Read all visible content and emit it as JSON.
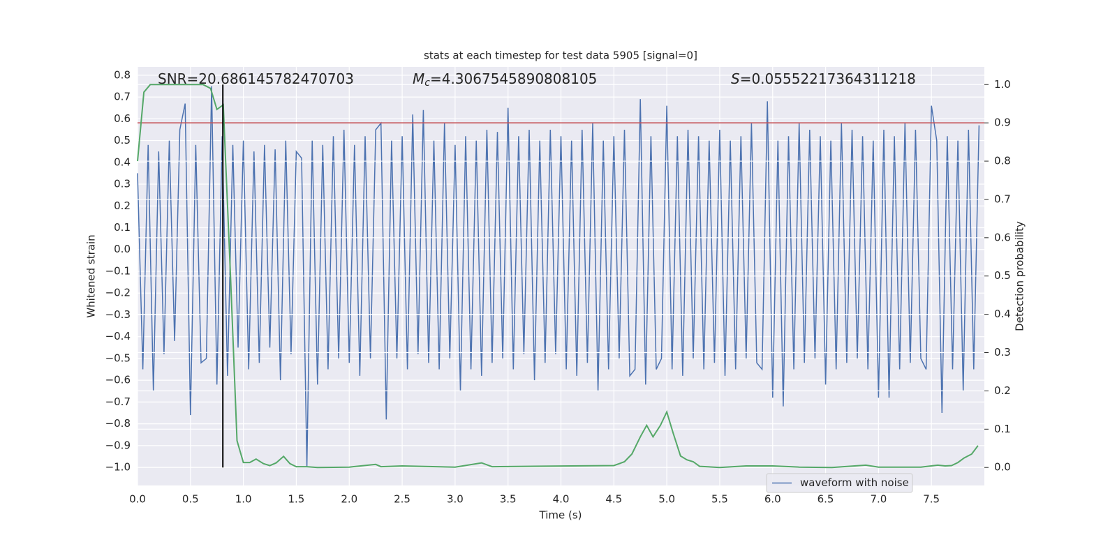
{
  "chart_data": {
    "type": "line",
    "title": "stats at each timestep for test data 5905 [signal=0]",
    "x_label": "Time (s)",
    "y_label": "Whitened strain",
    "y2_label": "Detection probability",
    "background": "#eaeaf2",
    "grid": true,
    "grid_color": "#ffffff",
    "legend": "lower right",
    "xlim": [
      0,
      8.0
    ],
    "ylim": [
      -1.083,
      0.838
    ],
    "y2lim": [
      -0.047,
      1.046
    ],
    "xticks": [
      {
        "value": 0,
        "label": "0.0"
      },
      0.5,
      {
        "value": 1,
        "label": "1.0"
      },
      1.5,
      {
        "value": 2,
        "label": "2.0"
      },
      2.5,
      {
        "value": 3,
        "label": "3.0"
      },
      3.5,
      {
        "value": 4,
        "label": "4.0"
      },
      4.5,
      {
        "value": 5,
        "label": "5.0"
      },
      5.5,
      {
        "value": 6,
        "label": "6.0"
      },
      6.5,
      {
        "value": 7,
        "label": "7.0"
      },
      7.5
    ],
    "yticks": [
      0.8,
      0.7,
      0.6,
      0.5,
      0.4,
      0.3,
      0.2,
      0.1,
      {
        "value": 0,
        "label": "0.0"
      },
      {
        "value": -0.1,
        "label": "−0.1"
      },
      {
        "value": -0.2,
        "label": "−0.2"
      },
      {
        "value": -0.3,
        "label": "−0.3"
      },
      {
        "value": -0.4,
        "label": "−0.4"
      },
      {
        "value": -0.5,
        "label": "−0.5"
      },
      {
        "value": -0.6,
        "label": "−0.6"
      },
      {
        "value": -0.7,
        "label": "−0.7"
      },
      {
        "value": -0.8,
        "label": "−0.8"
      },
      {
        "value": -0.9,
        "label": "−0.9"
      },
      {
        "value": -1,
        "label": "−1.0"
      }
    ],
    "y2ticks": [
      {
        "value": 1,
        "label": "1.0"
      },
      0.9,
      0.8,
      0.7,
      0.6,
      0.5,
      0.4,
      0.3,
      0.2,
      0.1,
      {
        "value": 0,
        "label": "0.0"
      }
    ],
    "annotations": [
      {
        "text": "SNR=20.686145782470703"
      },
      {
        "symbol": "M",
        "subscript": "c",
        "text": "=4.3067545890808105"
      },
      {
        "symbol": "S",
        "text": "=0.05552217364311218"
      }
    ],
    "series": [
      {
        "name": "waveform with noise",
        "color": "#4c72b0",
        "x": [
          0,
          0.05,
          0.1,
          0.15,
          0.2,
          0.25,
          0.3,
          0.35,
          0.4,
          0.45,
          0.5,
          0.55,
          0.6,
          0.65,
          0.7,
          0.75,
          0.8,
          0.85,
          0.9,
          0.95,
          1,
          1.05,
          1.1,
          1.15,
          1.2,
          1.25,
          1.3,
          1.35,
          1.4,
          1.45,
          1.5,
          1.55,
          1.6,
          1.65,
          1.7,
          1.75,
          1.8,
          1.85,
          1.9,
          1.95,
          2,
          2.05,
          2.1,
          2.15,
          2.2,
          2.25,
          2.3,
          2.35,
          2.4,
          2.45,
          2.5,
          2.55,
          2.6,
          2.65,
          2.7,
          2.75,
          2.8,
          2.85,
          2.9,
          2.95,
          3,
          3.05,
          3.1,
          3.15,
          3.2,
          3.25,
          3.3,
          3.35,
          3.4,
          3.45,
          3.5,
          3.55,
          3.6,
          3.65,
          3.7,
          3.75,
          3.8,
          3.85,
          3.9,
          3.95,
          4,
          4.05,
          4.1,
          4.15,
          4.2,
          4.25,
          4.3,
          4.35,
          4.4,
          4.45,
          4.5,
          4.55,
          4.6,
          4.65,
          4.7,
          4.75,
          4.8,
          4.85,
          4.9,
          4.95,
          5,
          5.05,
          5.1,
          5.15,
          5.2,
          5.25,
          5.3,
          5.35,
          5.4,
          5.45,
          5.5,
          5.55,
          5.6,
          5.65,
          5.7,
          5.75,
          5.8,
          5.85,
          5.9,
          5.95,
          6,
          6.05,
          6.1,
          6.15,
          6.2,
          6.25,
          6.3,
          6.35,
          6.4,
          6.45,
          6.5,
          6.55,
          6.6,
          6.65,
          6.7,
          6.75,
          6.8,
          6.85,
          6.9,
          6.95,
          7,
          7.05,
          7.1,
          7.15,
          7.2,
          7.25,
          7.3,
          7.35,
          7.4,
          7.45,
          7.5,
          7.55,
          7.6,
          7.65,
          7.7,
          7.75,
          7.8,
          7.85,
          7.9,
          7.95
        ],
        "values": [
          0.35,
          -0.55,
          0.48,
          -0.65,
          0.45,
          -0.48,
          0.5,
          -0.42,
          0.55,
          0.67,
          -0.76,
          0.48,
          -0.52,
          -0.5,
          0.75,
          -0.62,
          0.52,
          -0.58,
          0.48,
          -0.45,
          0.5,
          -0.55,
          0.45,
          -0.52,
          0.48,
          -0.45,
          0.46,
          -0.6,
          0.5,
          -0.48,
          0.45,
          0.42,
          -1.0,
          0.5,
          -0.62,
          0.48,
          -0.55,
          0.52,
          -0.5,
          0.55,
          -0.52,
          0.48,
          -0.58,
          0.52,
          -0.5,
          0.55,
          0.58,
          -0.78,
          0.5,
          -0.5,
          0.52,
          -0.55,
          0.62,
          -0.48,
          0.64,
          -0.52,
          0.5,
          -0.55,
          0.58,
          -0.5,
          0.48,
          -0.65,
          0.52,
          -0.55,
          0.5,
          -0.58,
          0.55,
          -0.52,
          0.54,
          -0.5,
          0.65,
          -0.55,
          0.52,
          -0.48,
          0.55,
          -0.6,
          0.5,
          -0.52,
          0.55,
          -0.48,
          0.52,
          -0.55,
          0.5,
          -0.58,
          0.55,
          -0.52,
          0.58,
          -0.65,
          0.5,
          -0.55,
          0.52,
          -0.5,
          0.55,
          -0.58,
          -0.55,
          0.69,
          -0.62,
          0.52,
          -0.55,
          -0.5,
          0.66,
          -0.55,
          0.52,
          -0.58,
          0.55,
          -0.5,
          0.52,
          -0.55,
          0.5,
          -0.52,
          0.55,
          -0.58,
          0.5,
          -0.55,
          0.52,
          -0.5,
          0.58,
          -0.52,
          -0.55,
          0.68,
          -0.68,
          0.5,
          -0.72,
          0.52,
          -0.55,
          0.58,
          -0.52,
          0.55,
          -0.5,
          0.52,
          -0.62,
          0.5,
          -0.55,
          0.58,
          -0.52,
          0.55,
          -0.5,
          0.52,
          -0.55,
          0.5,
          -0.68,
          0.55,
          -0.68,
          0.52,
          -0.55,
          0.58,
          -0.52,
          0.55,
          -0.5,
          -0.55,
          0.66,
          0.5,
          -0.75,
          0.52,
          -0.55,
          0.5,
          -0.65,
          0.55,
          -0.55,
          0.57
        ]
      }
    ],
    "y2_series": [
      {
        "color": "#55a868",
        "axis": "y2",
        "x": [
          0,
          0.06,
          0.12,
          0.25,
          0.5,
          0.62,
          0.69,
          0.75,
          0.81,
          0.88,
          0.94,
          1.0,
          1.06,
          1.12,
          1.19,
          1.25,
          1.31,
          1.38,
          1.44,
          1.5,
          1.6,
          1.7,
          2.0,
          2.25,
          2.3,
          2.5,
          3.0,
          3.25,
          3.35,
          4.1,
          4.5,
          4.6,
          4.67,
          4.75,
          4.81,
          4.87,
          4.94,
          5.0,
          5.06,
          5.13,
          5.19,
          5.25,
          5.31,
          5.5,
          5.75,
          6.0,
          6.25,
          6.56,
          6.88,
          7.0,
          7.4,
          7.56,
          7.63,
          7.69,
          7.75,
          7.81,
          7.88,
          7.94
        ],
        "values": [
          0.8,
          0.98,
          1.0,
          1.0,
          1.0,
          1.0,
          0.99,
          0.935,
          0.947,
          0.49,
          0.07,
          0.013,
          0.013,
          0.022,
          0.01,
          0.005,
          0.012,
          0.029,
          0.01,
          0.002,
          0.002,
          0.0,
          0.001,
          0.008,
          0.002,
          0.004,
          0.001,
          0.012,
          0.002,
          0.004,
          0.005,
          0.015,
          0.035,
          0.08,
          0.11,
          0.08,
          0.11,
          0.145,
          0.09,
          0.03,
          0.02,
          0.015,
          0.003,
          0.0,
          0.004,
          0.004,
          0.001,
          0.0,
          0.006,
          0.001,
          0.001,
          0.006,
          0.004,
          0.005,
          0.013,
          0.025,
          0.035,
          0.057
        ]
      }
    ],
    "hlines": [
      {
        "y": 0.9,
        "axis": "y2",
        "color": "#c44e52"
      }
    ],
    "vlines": [
      {
        "x": 0.806,
        "ymin": 0,
        "ymax": 1,
        "axis": "y2",
        "color": "#000000"
      }
    ]
  }
}
